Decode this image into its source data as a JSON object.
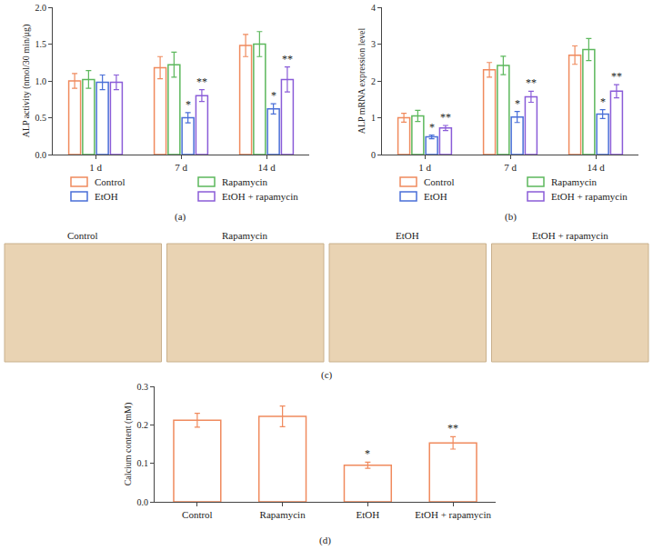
{
  "chart_data": [
    {
      "type": "bar",
      "caption": "(a)",
      "ylabel": "ALP activity (nmol/30 min/μg)",
      "categories": [
        "1 d",
        "7 d",
        "14 d"
      ],
      "ylim": [
        0,
        2.0
      ],
      "yticks": [
        {
          "value": 0,
          "label": "0.0"
        },
        {
          "value": 0.5,
          "label": "0.5"
        },
        {
          "value": 1.0,
          "label": "1.0"
        },
        {
          "value": 1.5,
          "label": "1.5"
        },
        {
          "value": 2.0,
          "label": "2.0"
        }
      ],
      "grid": false,
      "legend": "bottom",
      "series": [
        {
          "name": "Control",
          "color": "#f08a5d",
          "values": [
            1.0,
            1.18,
            1.48
          ],
          "errors": [
            0.1,
            0.15,
            0.15
          ],
          "significance": [
            null,
            null,
            null
          ]
        },
        {
          "name": "Rapamycin",
          "color": "#5cb85c",
          "values": [
            1.02,
            1.22,
            1.5
          ],
          "errors": [
            0.12,
            0.17,
            0.17
          ],
          "significance": [
            null,
            null,
            null
          ]
        },
        {
          "name": "EtOH",
          "color": "#4a6fd8",
          "values": [
            0.98,
            0.5,
            0.62
          ],
          "errors": [
            0.1,
            0.07,
            0.07
          ],
          "significance": [
            null,
            "*",
            "*"
          ]
        },
        {
          "name": "EtOH + rapamycin",
          "color": "#8a5cd8",
          "values": [
            0.98,
            0.8,
            1.02
          ],
          "errors": [
            0.1,
            0.08,
            0.17
          ],
          "significance": [
            null,
            "**",
            "**"
          ]
        }
      ]
    },
    {
      "type": "bar",
      "caption": "(b)",
      "ylabel": "ALP mRNA expression level",
      "categories": [
        "1 d",
        "7 d",
        "14 d"
      ],
      "ylim": [
        0,
        4
      ],
      "yticks": [
        0,
        1,
        2,
        3,
        4
      ],
      "grid": false,
      "legend": "bottom",
      "series": [
        {
          "name": "Control",
          "color": "#f08a5d",
          "values": [
            1.0,
            2.3,
            2.7
          ],
          "errors": [
            0.12,
            0.2,
            0.25
          ],
          "significance": [
            null,
            null,
            null
          ]
        },
        {
          "name": "Rapamycin",
          "color": "#5cb85c",
          "values": [
            1.05,
            2.42,
            2.85
          ],
          "errors": [
            0.15,
            0.25,
            0.3
          ],
          "significance": [
            null,
            null,
            null
          ]
        },
        {
          "name": "EtOH",
          "color": "#4a6fd8",
          "values": [
            0.48,
            1.02,
            1.1
          ],
          "errors": [
            0.05,
            0.15,
            0.12
          ],
          "significance": [
            "*",
            "*",
            "*"
          ]
        },
        {
          "name": "EtOH + rapamycin",
          "color": "#8a5cd8",
          "values": [
            0.72,
            1.57,
            1.72
          ],
          "errors": [
            0.07,
            0.15,
            0.18
          ],
          "significance": [
            "**",
            "**",
            "**"
          ]
        }
      ]
    },
    {
      "type": "image",
      "caption": "(c)",
      "categories": [
        "Control",
        "Rapamycin",
        "EtOH",
        "EtOH + rapamycin"
      ]
    },
    {
      "type": "bar",
      "caption": "(d)",
      "ylabel": "Calcium content (mM)",
      "categories": [
        "Control",
        "Rapamycin",
        "EtOH",
        "EtOH + rapamycin"
      ],
      "ylim": [
        0,
        0.3
      ],
      "yticks": [
        {
          "value": 0,
          "label": "0.0"
        },
        {
          "value": 0.1,
          "label": "0.1"
        },
        {
          "value": 0.2,
          "label": "0.2"
        },
        {
          "value": 0.3,
          "label": "0.3"
        }
      ],
      "grid": false,
      "color": "#f08a5d",
      "values": [
        0.212,
        0.222,
        0.095,
        0.153
      ],
      "errors": [
        0.018,
        0.027,
        0.008,
        0.016
      ],
      "significance": [
        null,
        null,
        "*",
        "**"
      ]
    }
  ]
}
